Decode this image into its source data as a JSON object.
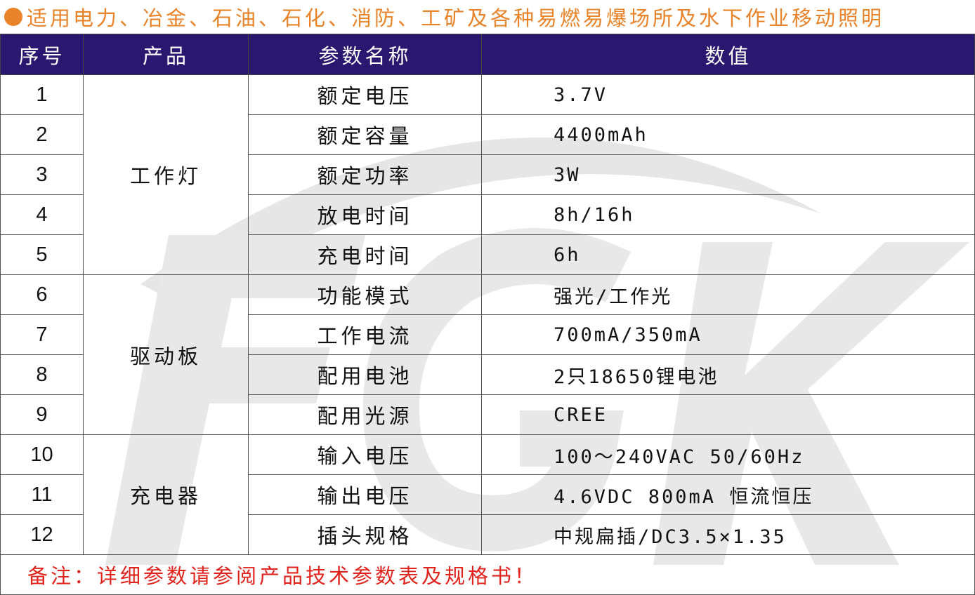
{
  "title": "适用电力、冶金、石油、石化、消防、工矿及各种易燃易爆场所及水下作业移动照明",
  "watermark": "FGK",
  "colors": {
    "accent": "#e8832a",
    "header_bg": "#2a1870",
    "note": "#e0231c"
  },
  "headers": [
    "序号",
    "产品",
    "参数名称",
    "数值"
  ],
  "groups": [
    {
      "label": "工作灯"
    },
    {
      "label": "驱动板"
    },
    {
      "label": "充电器"
    }
  ],
  "rows": [
    {
      "no": "1",
      "param": "额定电压",
      "value": "3.7V"
    },
    {
      "no": "2",
      "param": "额定容量",
      "value": "4400mAh"
    },
    {
      "no": "3",
      "param": "额定功率",
      "value": "3W"
    },
    {
      "no": "4",
      "param": "放电时间",
      "value": "8h/16h"
    },
    {
      "no": "5",
      "param": "充电时间",
      "value": "6h"
    },
    {
      "no": "6",
      "param": "功能模式",
      "value": "强光/工作光"
    },
    {
      "no": "7",
      "param": "工作电流",
      "value": "700mA/350mA"
    },
    {
      "no": "8",
      "param": "配用电池",
      "value": "2只18650锂电池"
    },
    {
      "no": "9",
      "param": "配用光源",
      "value": "CREE"
    },
    {
      "no": "10",
      "param": "输入电压",
      "value": "100～240VAC  50/60Hz"
    },
    {
      "no": "11",
      "param": "输出电压",
      "value": "4.6VDC 800mA  恒流恒压"
    },
    {
      "no": "12",
      "param": "插头规格",
      "value": "中规扁插/DC3.5×1.35"
    }
  ],
  "note": "备注：详细参数请参阅产品技术参数表及规格书！"
}
